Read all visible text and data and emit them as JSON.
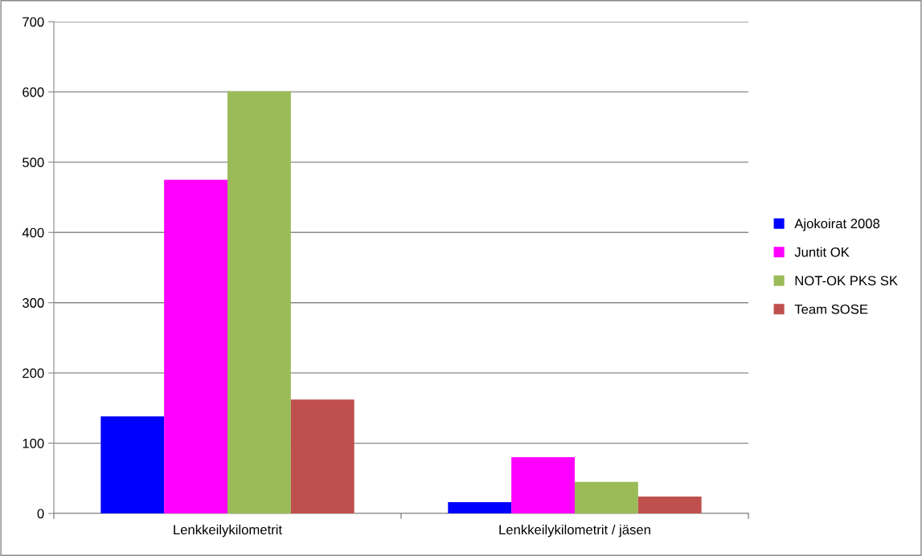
{
  "chart_data": {
    "type": "bar",
    "categories": [
      "Lenkkeilykilometrit",
      "Lenkkeilykilometrit / jäsen"
    ],
    "series": [
      {
        "name": "Ajokoirat 2008",
        "color": "#0000ff",
        "values": [
          138,
          16
        ]
      },
      {
        "name": "Juntit OK",
        "color": "#ff00ff",
        "values": [
          475,
          80
        ]
      },
      {
        "name": "NOT-OK PKS SK",
        "color": "#9bbb59",
        "values": [
          601,
          45
        ]
      },
      {
        "name": "Team SOSE",
        "color": "#c0504d",
        "values": [
          162,
          24
        ]
      }
    ],
    "ylim": [
      0,
      700
    ],
    "yticks": [
      0,
      100,
      200,
      300,
      400,
      500,
      600,
      700
    ],
    "grid": "y",
    "legend": "right"
  }
}
